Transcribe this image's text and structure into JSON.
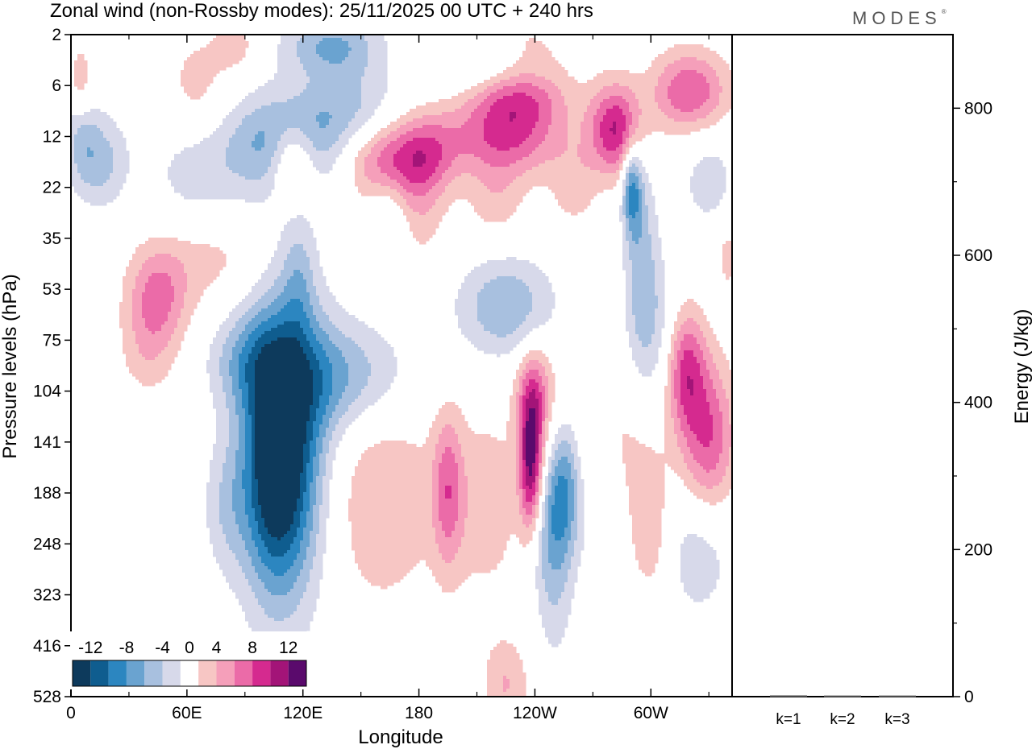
{
  "header": {
    "title": "Zonal wind (non-Rossby modes):  25/11/2025  00 UTC  + 240 hrs",
    "brand": "MODES"
  },
  "chart_data": [
    {
      "type": "heatmap",
      "title": "Zonal wind (non-Rossby modes):  25/11/2025  00 UTC  + 240 hrs",
      "xlabel": "Longitude",
      "ylabel": "Pressure levels (hPa)",
      "x_ticks": [
        "0",
        "60E",
        "120E",
        "180",
        "120W",
        "60W"
      ],
      "x_range_deg": [
        0,
        342
      ],
      "y_ticks": [
        "2",
        "6",
        "12",
        "22",
        "35",
        "53",
        "75",
        "104",
        "141",
        "188",
        "248",
        "323",
        "416",
        "528"
      ],
      "y_order": "top-to-bottom",
      "colorbar": {
        "labels": [
          "-12",
          "-8",
          "-4",
          "0",
          "4",
          "8",
          "12"
        ],
        "levels": [
          -14,
          -12,
          -10,
          -8,
          -6,
          -4,
          -2,
          2,
          4,
          6,
          8,
          10,
          12,
          14
        ],
        "colors": [
          "#0d3a5c",
          "#0f5d8f",
          "#2c86c0",
          "#6aa3d0",
          "#a8c0df",
          "#d7d9ea",
          "#ffffff",
          "#f7c6c4",
          "#f59fba",
          "#eb6ba8",
          "#d52a8f",
          "#a31478",
          "#5a0a6c"
        ]
      },
      "blobs": [
        {
          "lon": 110,
          "p": 140,
          "value": -13,
          "lon_w": 22,
          "lev_w": 3.0
        },
        {
          "lon": 140,
          "p": 95,
          "value": -6,
          "lon_w": 35,
          "lev_w": 1.1
        },
        {
          "lon": 105,
          "p": 180,
          "value": -5,
          "lon_w": 15,
          "lev_w": 2.0
        },
        {
          "lon": 112,
          "p": 13,
          "value": -8,
          "lon_w": 30,
          "lev_w": 1.0
        },
        {
          "lon": 145,
          "p": 8,
          "value": -4,
          "lon_w": 25,
          "lev_w": 0.9
        },
        {
          "lon": 15,
          "p": 16,
          "value": -5,
          "lon_w": 14,
          "lev_w": 0.9
        },
        {
          "lon": 65,
          "p": 20,
          "value": -3,
          "lon_w": 25,
          "lev_w": 1.2
        },
        {
          "lon": 135,
          "p": 2.5,
          "value": -6,
          "lon_w": 25,
          "lev_w": 0.6
        },
        {
          "lon": 210,
          "p": 3.5,
          "value": -4,
          "lon_w": 25,
          "lev_w": 0.6
        },
        {
          "lon": 290,
          "p": 22,
          "value": -8,
          "lon_w": 5,
          "lev_w": 0.9
        },
        {
          "lon": 255,
          "p": 185,
          "value": -9,
          "lon_w": 9,
          "lev_w": 1.4
        },
        {
          "lon": 225,
          "p": 60,
          "value": -6,
          "lon_w": 25,
          "lev_w": 1.0
        },
        {
          "lon": 90,
          "p": 85,
          "value": -4,
          "lon_w": 20,
          "lev_w": 0.9
        },
        {
          "lon": 295,
          "p": 35,
          "value": -4,
          "lon_w": 8,
          "lev_w": 2.0
        },
        {
          "lon": 325,
          "p": 250,
          "value": -4,
          "lon_w": 18,
          "lev_w": 1.4
        },
        {
          "lon": 250,
          "p": 330,
          "value": -3,
          "lon_w": 10,
          "lev_w": 1.4
        },
        {
          "lon": 330,
          "p": 20,
          "value": -3,
          "lon_w": 15,
          "lev_w": 1.0
        },
        {
          "lon": 30,
          "p": 200,
          "value": -3,
          "lon_w": 15,
          "lev_w": 1.4
        },
        {
          "lon": 80,
          "p": 205,
          "value": -3,
          "lon_w": 12,
          "lev_w": 1.3
        },
        {
          "lon": 300,
          "p": 70,
          "value": -4,
          "lon_w": 14,
          "lev_w": 1.6
        },
        {
          "lon": 275,
          "p": 210,
          "value": -3,
          "lon_w": 12,
          "lev_w": 1.6
        },
        {
          "lon": 245,
          "p": 230,
          "value": -4,
          "lon_w": 10,
          "lev_w": 1.2
        },
        {
          "lon": 118,
          "p": 48,
          "value": -3,
          "lon_w": 8,
          "lev_w": 1.2
        },
        {
          "lon": 165,
          "p": 30,
          "value": -3,
          "lon_w": 10,
          "lev_w": 1.0
        },
        {
          "lon": 5,
          "p": 10,
          "value": -4,
          "lon_w": 8,
          "lev_w": 1.0
        },
        {
          "lon": 225,
          "p": 12,
          "value": 8,
          "lon_w": 30,
          "lev_w": 0.8
        },
        {
          "lon": 282,
          "p": 11,
          "value": 10,
          "lon_w": 14,
          "lev_w": 0.9
        },
        {
          "lon": 232,
          "p": 7,
          "value": 6,
          "lon_w": 25,
          "lev_w": 0.6
        },
        {
          "lon": 320,
          "p": 6.5,
          "value": 8,
          "lon_w": 20,
          "lev_w": 0.8
        },
        {
          "lon": 115,
          "p": 16,
          "value": 8,
          "lon_w": 12,
          "lev_w": 0.8
        },
        {
          "lon": 165,
          "p": 16,
          "value": 8,
          "lon_w": 25,
          "lev_w": 0.8
        },
        {
          "lon": 185,
          "p": 14,
          "value": 4,
          "lon_w": 15,
          "lev_w": 0.8
        },
        {
          "lon": 5,
          "p": 6,
          "value": 5,
          "lon_w": 6,
          "lev_w": 0.8
        },
        {
          "lon": 45,
          "p": 55,
          "value": 6,
          "lon_w": 16,
          "lev_w": 1.0
        },
        {
          "lon": 40,
          "p": 80,
          "value": 3,
          "lon_w": 15,
          "lev_w": 1.0
        },
        {
          "lon": 75,
          "p": 40,
          "value": 3,
          "lon_w": 30,
          "lev_w": 1.0
        },
        {
          "lon": 240,
          "p": 105,
          "value": 6,
          "lon_w": 10,
          "lev_w": 1.0
        },
        {
          "lon": 238,
          "p": 160,
          "value": 12,
          "lon_w": 6,
          "lev_w": 1.4
        },
        {
          "lon": 330,
          "p": 140,
          "value": 8,
          "lon_w": 14,
          "lev_w": 1.6
        },
        {
          "lon": 318,
          "p": 90,
          "value": 8,
          "lon_w": 10,
          "lev_w": 1.2
        },
        {
          "lon": 195,
          "p": 185,
          "value": 6,
          "lon_w": 8,
          "lev_w": 1.5
        },
        {
          "lon": 160,
          "p": 190,
          "value": 4,
          "lon_w": 30,
          "lev_w": 2.2
        },
        {
          "lon": 215,
          "p": 200,
          "value": 3,
          "lon_w": 20,
          "lev_w": 2.0
        },
        {
          "lon": 280,
          "p": 150,
          "value": 3,
          "lon_w": 30,
          "lev_w": 2.0
        },
        {
          "lon": 225,
          "p": 500,
          "value": 4,
          "lon_w": 12,
          "lev_w": 0.9
        },
        {
          "lon": 25,
          "p": 200,
          "value": 3,
          "lon_w": 12,
          "lev_w": 1.5
        },
        {
          "lon": 180,
          "p": 28,
          "value": 3,
          "lon_w": 14,
          "lev_w": 1.0
        },
        {
          "lon": 220,
          "p": 25,
          "value": 3,
          "lon_w": 15,
          "lev_w": 0.8
        },
        {
          "lon": 260,
          "p": 22,
          "value": 3,
          "lon_w": 12,
          "lev_w": 0.8
        },
        {
          "lon": 65,
          "p": 6,
          "value": 3,
          "lon_w": 15,
          "lev_w": 1.0
        },
        {
          "lon": 225,
          "p": 2.5,
          "value": 3,
          "lon_w": 35,
          "lev_w": 0.6
        },
        {
          "lon": 300,
          "p": 235,
          "value": 3,
          "lon_w": 10,
          "lev_w": 1.3
        },
        {
          "lon": 85,
          "p": 2.5,
          "value": 3,
          "lon_w": 12,
          "lev_w": 0.6
        },
        {
          "lon": 340,
          "p": 40,
          "value": 3,
          "lon_w": 6,
          "lev_w": 0.7
        }
      ]
    },
    {
      "type": "bar",
      "categories": [
        "k=1",
        "k=2",
        "k=3"
      ],
      "values": [
        0.6,
        0.4,
        0.4
      ],
      "ylabel": "Energy (J/kg)",
      "y_ticks": [
        "0",
        "200",
        "400",
        "600",
        "800"
      ],
      "ylim": [
        0,
        900
      ]
    }
  ]
}
